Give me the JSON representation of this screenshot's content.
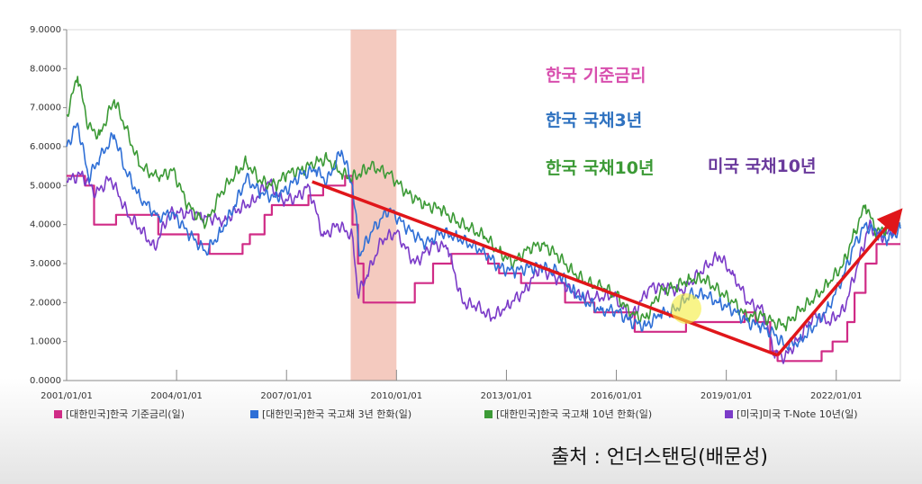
{
  "chart_data": {
    "type": "line",
    "y_ticks": [
      "0.0000",
      "1.0000",
      "2.0000",
      "3.0000",
      "4.0000",
      "5.0000",
      "6.0000",
      "7.0000",
      "8.0000",
      "9.0000"
    ],
    "x_ticks": [
      "2001/01/01",
      "2004/01/01",
      "2007/01/01",
      "2010/01/01",
      "2013/01/01",
      "2016/01/01",
      "2019/01/01",
      "2022/01/01"
    ],
    "ylim": [
      0,
      9
    ],
    "xlim": [
      2001.0,
      2023.75
    ],
    "grid": false,
    "legend_position": "bottom",
    "shaded_region": {
      "x": [
        2008.75,
        2010.0
      ],
      "color": "#f0b4a4"
    },
    "trend_lines": [
      {
        "x": [
          2007.7,
          2020.4
        ],
        "y": [
          5.1,
          0.65
        ],
        "color": "#e0161a"
      },
      {
        "x": [
          2020.4,
          2023.7
        ],
        "y": [
          0.65,
          4.3
        ],
        "color": "#e0161a"
      }
    ],
    "annotations": [
      {
        "text": "한국 기준금리",
        "color": "#d84fae"
      },
      {
        "text": "한국 국채3년",
        "color": "#2f72c0"
      },
      {
        "text": "한국 국채10년",
        "color": "#3c9a36"
      },
      {
        "text": "미국 국채10년",
        "color": "#6a3a9c"
      }
    ],
    "series": [
      {
        "name": "[대한민국]한국 기준금리(일)",
        "color": "#d02b86",
        "x": [
          2001.0,
          2001.5,
          2001.5,
          2001.75,
          2001.75,
          2002.35,
          2002.35,
          2003.5,
          2003.5,
          2004.6,
          2004.6,
          2004.9,
          2004.9,
          2005.8,
          2005.8,
          2006.0,
          2006.0,
          2006.4,
          2006.4,
          2006.6,
          2006.6,
          2007.6,
          2007.6,
          2008.0,
          2008.0,
          2008.6,
          2008.6,
          2008.8,
          2008.8,
          2008.95,
          2008.95,
          2009.1,
          2009.1,
          2010.5,
          2010.5,
          2011.0,
          2011.0,
          2011.5,
          2011.5,
          2012.5,
          2012.5,
          2012.8,
          2012.8,
          2013.4,
          2013.4,
          2014.6,
          2014.6,
          2015.4,
          2015.4,
          2016.5,
          2016.5,
          2017.9,
          2017.9,
          2019.5,
          2019.5,
          2019.8,
          2019.8,
          2020.2,
          2020.2,
          2020.4,
          2020.4,
          2021.6,
          2021.6,
          2021.9,
          2021.9,
          2022.3,
          2022.3,
          2022.5,
          2022.5,
          2022.8,
          2022.8,
          2023.1,
          2023.1,
          2023.75
        ],
        "y": [
          5.25,
          5.25,
          5.0,
          5.0,
          4.0,
          4.0,
          4.25,
          4.25,
          3.75,
          3.75,
          3.5,
          3.5,
          3.25,
          3.25,
          3.5,
          3.5,
          3.75,
          3.75,
          4.25,
          4.25,
          4.5,
          4.5,
          4.75,
          4.75,
          5.0,
          5.0,
          5.25,
          5.25,
          4.0,
          4.0,
          3.0,
          3.0,
          2.0,
          2.0,
          2.5,
          2.5,
          3.0,
          3.0,
          3.25,
          3.25,
          3.0,
          3.0,
          2.75,
          2.75,
          2.5,
          2.5,
          2.0,
          2.0,
          1.75,
          1.75,
          1.25,
          1.25,
          1.5,
          1.5,
          1.75,
          1.75,
          1.5,
          1.5,
          0.75,
          0.75,
          0.5,
          0.5,
          0.75,
          0.75,
          1.0,
          1.0,
          1.5,
          1.5,
          2.25,
          2.25,
          3.0,
          3.0,
          3.5,
          3.5
        ]
      },
      {
        "name": "[대한민국]한국 국고채 3년 한화(일)",
        "color": "#2f6fd6",
        "x": [
          2001.0,
          2001.3,
          2001.6,
          2001.9,
          2002.3,
          2002.6,
          2003.0,
          2003.5,
          2003.9,
          2004.3,
          2004.8,
          2005.2,
          2005.6,
          2005.9,
          2006.3,
          2006.7,
          2007.0,
          2007.4,
          2007.8,
          2008.1,
          2008.5,
          2008.8,
          2009.0,
          2009.3,
          2009.8,
          2010.3,
          2010.8,
          2011.2,
          2011.6,
          2012.0,
          2012.4,
          2012.8,
          2013.2,
          2013.6,
          2014.0,
          2014.4,
          2014.8,
          2015.2,
          2015.6,
          2016.0,
          2016.4,
          2016.8,
          2017.2,
          2017.6,
          2018.0,
          2018.4,
          2018.8,
          2019.2,
          2019.6,
          2019.9,
          2020.3,
          2020.6,
          2021.0,
          2021.4,
          2021.8,
          2022.2,
          2022.5,
          2022.8,
          2023.1,
          2023.4,
          2023.75
        ],
        "y": [
          6.0,
          6.6,
          5.2,
          5.7,
          6.3,
          5.4,
          4.7,
          4.2,
          4.3,
          3.8,
          3.3,
          3.8,
          4.5,
          5.2,
          4.8,
          4.7,
          4.9,
          5.3,
          5.4,
          5.1,
          5.9,
          5.0,
          3.2,
          3.8,
          4.4,
          3.9,
          3.5,
          3.8,
          3.7,
          3.5,
          3.3,
          2.9,
          2.8,
          2.9,
          2.9,
          2.8,
          2.3,
          2.0,
          1.8,
          1.8,
          1.5,
          1.4,
          1.7,
          1.8,
          2.2,
          2.2,
          2.0,
          1.8,
          1.5,
          1.4,
          1.2,
          0.9,
          1.0,
          1.4,
          1.9,
          2.7,
          3.5,
          4.0,
          3.8,
          3.6,
          3.9
        ]
      },
      {
        "name": "[대한민국]한국 국고채 10년 한화(일)",
        "color": "#3c9a36",
        "x": [
          2001.0,
          2001.3,
          2001.6,
          2001.9,
          2002.3,
          2002.6,
          2003.0,
          2003.5,
          2003.9,
          2004.3,
          2004.8,
          2005.2,
          2005.6,
          2005.9,
          2006.3,
          2006.7,
          2007.0,
          2007.4,
          2007.8,
          2008.1,
          2008.5,
          2008.8,
          2009.0,
          2009.3,
          2009.8,
          2010.3,
          2010.8,
          2011.2,
          2011.6,
          2012.0,
          2012.4,
          2012.8,
          2013.2,
          2013.6,
          2014.0,
          2014.4,
          2014.8,
          2015.2,
          2015.6,
          2016.0,
          2016.4,
          2016.8,
          2017.2,
          2017.6,
          2018.0,
          2018.4,
          2018.8,
          2019.2,
          2019.6,
          2019.9,
          2020.3,
          2020.6,
          2021.0,
          2021.4,
          2021.8,
          2022.2,
          2022.5,
          2022.8,
          2023.1,
          2023.4,
          2023.75
        ],
        "y": [
          6.8,
          7.8,
          6.5,
          6.3,
          7.2,
          6.5,
          5.5,
          5.2,
          5.4,
          4.5,
          4.0,
          4.8,
          5.3,
          5.6,
          5.1,
          5.0,
          5.3,
          5.4,
          5.6,
          5.7,
          5.3,
          5.2,
          5.3,
          5.5,
          5.3,
          4.8,
          4.5,
          4.4,
          4.1,
          3.9,
          3.7,
          3.3,
          3.0,
          3.4,
          3.5,
          3.2,
          2.8,
          2.5,
          2.4,
          2.2,
          1.7,
          1.6,
          2.3,
          2.4,
          2.6,
          2.6,
          2.3,
          2.0,
          1.6,
          1.7,
          1.5,
          1.4,
          1.8,
          2.1,
          2.5,
          3.0,
          3.8,
          4.5,
          3.8,
          3.9,
          4.0
        ]
      },
      {
        "name": "[미국]미국 T-Note 10년(일)",
        "color": "#7b3bc8",
        "x": [
          2001.0,
          2001.4,
          2001.8,
          2002.2,
          2002.7,
          2003.0,
          2003.4,
          2003.8,
          2004.3,
          2004.8,
          2005.3,
          2005.7,
          2006.1,
          2006.5,
          2006.9,
          2007.3,
          2007.6,
          2008.0,
          2008.4,
          2008.8,
          2008.95,
          2009.2,
          2009.6,
          2010.0,
          2010.5,
          2011.0,
          2011.4,
          2011.8,
          2012.2,
          2012.6,
          2013.0,
          2013.5,
          2013.9,
          2014.4,
          2014.9,
          2015.4,
          2015.9,
          2016.4,
          2016.9,
          2017.3,
          2017.8,
          2018.3,
          2018.8,
          2019.2,
          2019.6,
          2020.0,
          2020.3,
          2020.6,
          2021.0,
          2021.4,
          2021.8,
          2022.2,
          2022.6,
          2022.9,
          2023.2,
          2023.5,
          2023.75
        ],
        "y": [
          5.1,
          5.3,
          4.8,
          5.2,
          4.2,
          3.9,
          3.4,
          4.3,
          4.3,
          4.2,
          4.1,
          4.4,
          4.6,
          5.1,
          4.6,
          4.7,
          5.0,
          3.7,
          4.0,
          3.7,
          2.2,
          2.7,
          3.6,
          3.8,
          3.0,
          3.5,
          3.4,
          2.0,
          1.9,
          1.6,
          1.9,
          2.3,
          2.9,
          2.6,
          2.2,
          2.1,
          2.2,
          1.6,
          2.4,
          2.4,
          2.3,
          2.8,
          3.2,
          2.7,
          2.0,
          1.8,
          0.7,
          0.6,
          1.1,
          1.7,
          1.5,
          1.8,
          3.0,
          4.0,
          3.7,
          3.8,
          4.3
        ]
      }
    ]
  },
  "legend": [
    {
      "label": "[대한민국]한국 기준금리(일)",
      "color": "#d02b86"
    },
    {
      "label": "[대한민국]한국 국고채 3년 한화(일)",
      "color": "#2f6fd6"
    },
    {
      "label": "[대한민국]한국 국고채 10년 한화(일)",
      "color": "#3c9a36"
    },
    {
      "label": "[미국]미국 T-Note 10년(일)",
      "color": "#7b3bc8"
    }
  ],
  "source": "출처 : 언더스탠딩(배문성)"
}
